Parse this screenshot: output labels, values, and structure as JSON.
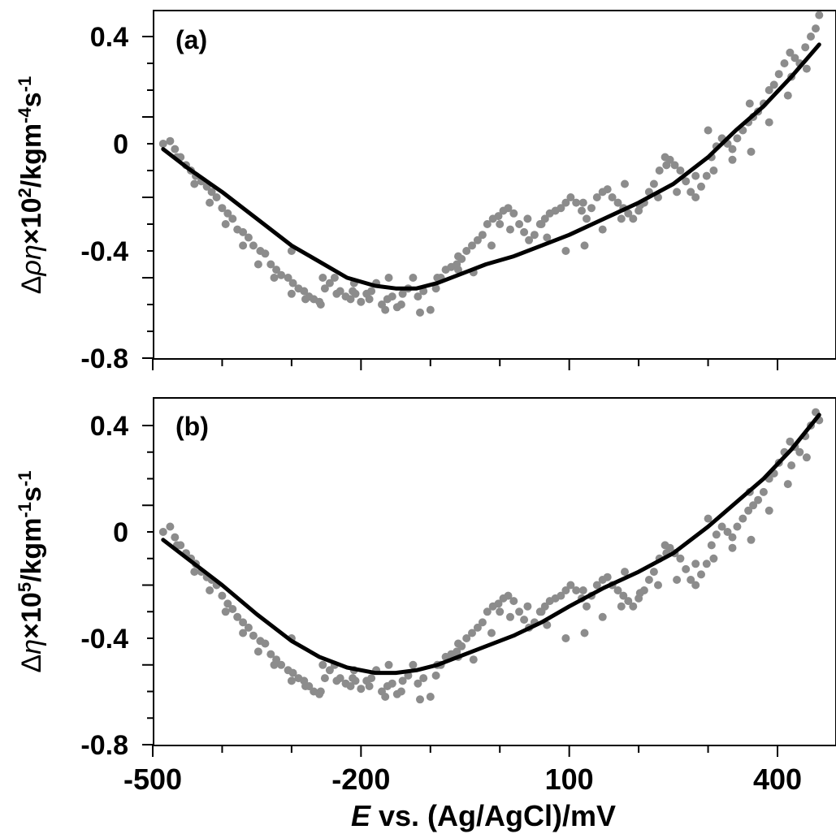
{
  "figure": {
    "xlabel_italic": "E",
    "xlabel_rest": " vs. (Ag/AgCl)/mV",
    "x_ticks": [
      "-500",
      "-200",
      "100",
      "400"
    ]
  },
  "chart_data": [
    {
      "type": "scatter",
      "panel_label": "(a)",
      "ylabel": "Δρη×10²/kgm⁻⁴s⁻¹",
      "ylabel_parts": [
        "Δ",
        "ρη",
        "×10",
        "2",
        "/kgm",
        "-4",
        "s",
        "-1"
      ],
      "xlim": [
        -500,
        470
      ],
      "ylim": [
        -0.8,
        0.4
      ],
      "x_ticks": [
        -500,
        -400,
        -300,
        -200,
        -100,
        0,
        100,
        200,
        300,
        400
      ],
      "x_tick_labels": [
        "-500",
        "-200",
        "100",
        "400"
      ],
      "y_ticks": [
        -0.8,
        -0.4,
        0,
        0.4
      ],
      "y_tick_labels": [
        "-0.8",
        "-0.4",
        "0",
        "0.4"
      ],
      "grid": false,
      "series": [
        {
          "kind": "points",
          "color": "#8c8c8c",
          "x": [
            -485,
            -475,
            -468,
            -460,
            -452,
            -445,
            -438,
            -430,
            -422,
            -415,
            -408,
            -400,
            -392,
            -385,
            -378,
            -370,
            -362,
            -355,
            -345,
            -338,
            -330,
            -322,
            -315,
            -305,
            -298,
            -290,
            -282,
            -275,
            -268,
            -260,
            -252,
            -245,
            -238,
            -230,
            -222,
            -215,
            -208,
            -200,
            -192,
            -185,
            -178,
            -170,
            -162,
            -155,
            -148,
            -140,
            -132,
            -125,
            -115,
            -100,
            -92,
            -85,
            -78,
            -70,
            -62,
            -55,
            -48,
            -40,
            -32,
            -25,
            -18,
            -10,
            -2,
            5,
            12,
            20,
            28,
            35,
            42,
            50,
            58,
            65,
            72,
            80,
            88,
            95,
            102,
            110,
            118,
            125,
            132,
            140,
            148,
            155,
            162,
            170,
            178,
            185,
            192,
            200,
            208,
            215,
            222,
            230,
            238,
            245,
            252,
            260,
            268,
            275,
            282,
            290,
            298,
            305,
            312,
            320,
            328,
            335,
            342,
            350,
            358,
            365,
            372,
            380,
            388,
            395,
            402,
            410,
            418,
            425,
            432,
            440,
            448,
            455,
            -465,
            -440,
            -418,
            -395,
            -370,
            -348,
            -325,
            -300,
            -280,
            -258,
            -235,
            -212,
            -188,
            -165,
            -142,
            -118,
            -90,
            -60,
            -38,
            -12,
            15,
            40,
            68,
            95,
            122,
            148,
            175,
            202,
            228,
            255,
            282,
            308,
            335,
            362,
            388,
            415,
            442,
            460,
            -300,
            -255,
            -210,
            -160,
            -110,
            -60,
            0,
            60,
            120,
            180,
            240,
            300,
            360,
            420
          ],
          "y": [
            0.0,
            0.01,
            -0.02,
            -0.05,
            -0.08,
            -0.1,
            -0.12,
            -0.14,
            -0.16,
            -0.18,
            -0.2,
            -0.24,
            -0.26,
            -0.28,
            -0.32,
            -0.33,
            -0.35,
            -0.38,
            -0.4,
            -0.41,
            -0.45,
            -0.47,
            -0.49,
            -0.5,
            -0.52,
            -0.54,
            -0.55,
            -0.57,
            -0.58,
            -0.59,
            -0.54,
            -0.52,
            -0.5,
            -0.55,
            -0.57,
            -0.58,
            -0.56,
            -0.59,
            -0.56,
            -0.55,
            -0.52,
            -0.6,
            -0.58,
            -0.57,
            -0.61,
            -0.56,
            -0.54,
            -0.5,
            -0.63,
            -0.62,
            -0.54,
            -0.5,
            -0.47,
            -0.46,
            -0.45,
            -0.43,
            -0.4,
            -0.38,
            -0.36,
            -0.34,
            -0.3,
            -0.28,
            -0.27,
            -0.25,
            -0.24,
            -0.26,
            -0.3,
            -0.33,
            -0.36,
            -0.34,
            -0.3,
            -0.28,
            -0.26,
            -0.25,
            -0.24,
            -0.22,
            -0.2,
            -0.22,
            -0.25,
            -0.28,
            -0.24,
            -0.2,
            -0.18,
            -0.17,
            -0.2,
            -0.22,
            -0.24,
            -0.26,
            -0.28,
            -0.25,
            -0.22,
            -0.18,
            -0.15,
            -0.1,
            -0.05,
            -0.06,
            -0.08,
            -0.1,
            -0.14,
            -0.18,
            -0.2,
            -0.16,
            -0.12,
            -0.05,
            -0.01,
            0.02,
            0.0,
            -0.02,
            0.02,
            0.05,
            0.08,
            0.1,
            0.12,
            0.15,
            0.2,
            0.22,
            0.26,
            0.3,
            0.34,
            0.32,
            0.3,
            0.36,
            0.4,
            0.43,
            -0.05,
            -0.15,
            -0.22,
            -0.3,
            -0.38,
            -0.45,
            -0.5,
            -0.56,
            -0.58,
            -0.6,
            -0.56,
            -0.55,
            -0.58,
            -0.62,
            -0.6,
            -0.57,
            -0.5,
            -0.47,
            -0.48,
            -0.38,
            -0.32,
            -0.28,
            -0.35,
            -0.4,
            -0.38,
            -0.32,
            -0.28,
            -0.23,
            -0.2,
            -0.18,
            -0.12,
            -0.1,
            -0.06,
            -0.03,
            0.08,
            0.18,
            0.28,
            0.48,
            -0.4,
            -0.5,
            -0.52,
            -0.5,
            -0.55,
            -0.42,
            -0.3,
            -0.3,
            -0.22,
            -0.15,
            -0.08,
            0.05,
            0.15,
            0.25
          ]
        },
        {
          "kind": "line",
          "color": "#000000",
          "x": [
            -485,
            -450,
            -400,
            -350,
            -300,
            -260,
            -220,
            -180,
            -150,
            -120,
            -90,
            -60,
            -20,
            20,
            60,
            100,
            150,
            200,
            250,
            300,
            340,
            380,
            420,
            460
          ],
          "y": [
            -0.02,
            -0.09,
            -0.18,
            -0.28,
            -0.38,
            -0.44,
            -0.5,
            -0.53,
            -0.54,
            -0.54,
            -0.52,
            -0.49,
            -0.45,
            -0.42,
            -0.38,
            -0.34,
            -0.28,
            -0.22,
            -0.15,
            -0.05,
            0.05,
            0.14,
            0.25,
            0.37
          ]
        }
      ]
    },
    {
      "type": "scatter",
      "panel_label": "(b)",
      "ylabel": "Δη×10⁵/kgm⁻¹s⁻¹",
      "ylabel_parts": [
        "Δ",
        "η",
        "×10",
        "5",
        "/kgm",
        "-1",
        "s",
        "-1"
      ],
      "xlabel": "E vs. (Ag/AgCl)/mV",
      "xlim": [
        -500,
        470
      ],
      "ylim": [
        -0.8,
        0.4
      ],
      "x_ticks": [
        -500,
        -400,
        -300,
        -200,
        -100,
        0,
        100,
        200,
        300,
        400
      ],
      "x_tick_labels": [
        "-500",
        "-200",
        "100",
        "400"
      ],
      "y_ticks": [
        -0.8,
        -0.4,
        0,
        0.4
      ],
      "y_tick_labels": [
        "-0.8",
        "-0.4",
        "0",
        "0.4"
      ],
      "grid": false,
      "series": [
        {
          "kind": "points",
          "color": "#8c8c8c",
          "x": [
            -485,
            -475,
            -468,
            -460,
            -452,
            -445,
            -438,
            -430,
            -422,
            -415,
            -408,
            -400,
            -392,
            -385,
            -378,
            -370,
            -362,
            -355,
            -345,
            -338,
            -330,
            -322,
            -315,
            -305,
            -298,
            -290,
            -282,
            -275,
            -268,
            -260,
            -252,
            -245,
            -238,
            -230,
            -222,
            -215,
            -208,
            -200,
            -192,
            -185,
            -178,
            -170,
            -162,
            -155,
            -148,
            -140,
            -132,
            -125,
            -115,
            -100,
            -92,
            -85,
            -78,
            -70,
            -62,
            -55,
            -48,
            -40,
            -32,
            -25,
            -18,
            -10,
            -2,
            5,
            12,
            20,
            28,
            35,
            42,
            50,
            58,
            65,
            72,
            80,
            88,
            95,
            102,
            110,
            118,
            125,
            132,
            140,
            148,
            155,
            162,
            170,
            178,
            185,
            192,
            200,
            208,
            215,
            222,
            230,
            238,
            245,
            252,
            260,
            268,
            275,
            282,
            290,
            298,
            305,
            312,
            320,
            328,
            335,
            342,
            350,
            358,
            365,
            372,
            380,
            388,
            395,
            402,
            410,
            418,
            425,
            432,
            440,
            448,
            455,
            -465,
            -440,
            -418,
            -395,
            -370,
            -348,
            -325,
            -300,
            -280,
            -258,
            -235,
            -212,
            -188,
            -165,
            -142,
            -118,
            -90,
            -60,
            -38,
            -12,
            15,
            40,
            68,
            95,
            122,
            148,
            175,
            202,
            228,
            255,
            282,
            308,
            335,
            362,
            388,
            415,
            442,
            460,
            -300,
            -255,
            -210,
            -160,
            -110,
            -60,
            0,
            60,
            120,
            180,
            240,
            300,
            360,
            420
          ],
          "y": [
            0.0,
            0.02,
            -0.02,
            -0.05,
            -0.08,
            -0.1,
            -0.12,
            -0.15,
            -0.17,
            -0.18,
            -0.2,
            -0.24,
            -0.27,
            -0.29,
            -0.32,
            -0.34,
            -0.36,
            -0.39,
            -0.41,
            -0.42,
            -0.46,
            -0.48,
            -0.5,
            -0.52,
            -0.53,
            -0.55,
            -0.56,
            -0.58,
            -0.6,
            -0.61,
            -0.55,
            -0.52,
            -0.5,
            -0.55,
            -0.57,
            -0.58,
            -0.56,
            -0.59,
            -0.56,
            -0.55,
            -0.52,
            -0.6,
            -0.58,
            -0.57,
            -0.61,
            -0.56,
            -0.54,
            -0.5,
            -0.63,
            -0.62,
            -0.54,
            -0.5,
            -0.47,
            -0.46,
            -0.45,
            -0.43,
            -0.4,
            -0.38,
            -0.36,
            -0.34,
            -0.3,
            -0.28,
            -0.27,
            -0.25,
            -0.24,
            -0.26,
            -0.3,
            -0.33,
            -0.36,
            -0.34,
            -0.3,
            -0.28,
            -0.26,
            -0.25,
            -0.24,
            -0.22,
            -0.2,
            -0.22,
            -0.25,
            -0.28,
            -0.24,
            -0.2,
            -0.18,
            -0.17,
            -0.2,
            -0.22,
            -0.24,
            -0.26,
            -0.28,
            -0.25,
            -0.22,
            -0.18,
            -0.15,
            -0.1,
            -0.05,
            -0.06,
            -0.08,
            -0.1,
            -0.14,
            -0.18,
            -0.2,
            -0.16,
            -0.12,
            -0.05,
            -0.01,
            0.02,
            0.0,
            -0.02,
            0.02,
            0.05,
            0.08,
            0.1,
            0.12,
            0.15,
            0.2,
            0.22,
            0.26,
            0.3,
            0.34,
            0.32,
            0.3,
            0.36,
            0.4,
            0.45,
            -0.05,
            -0.15,
            -0.22,
            -0.3,
            -0.38,
            -0.45,
            -0.5,
            -0.56,
            -0.58,
            -0.6,
            -0.56,
            -0.55,
            -0.58,
            -0.62,
            -0.6,
            -0.57,
            -0.5,
            -0.47,
            -0.48,
            -0.38,
            -0.32,
            -0.28,
            -0.35,
            -0.4,
            -0.38,
            -0.32,
            -0.28,
            -0.23,
            -0.2,
            -0.18,
            -0.12,
            -0.1,
            -0.06,
            -0.03,
            0.08,
            0.18,
            0.28,
            0.42,
            -0.4,
            -0.5,
            -0.52,
            -0.5,
            -0.55,
            -0.42,
            -0.3,
            -0.3,
            -0.22,
            -0.15,
            -0.08,
            0.05,
            0.15,
            0.25
          ]
        },
        {
          "kind": "line",
          "color": "#000000",
          "x": [
            -485,
            -450,
            -400,
            -350,
            -300,
            -260,
            -220,
            -180,
            -150,
            -120,
            -90,
            -60,
            -20,
            20,
            60,
            100,
            150,
            200,
            250,
            300,
            340,
            380,
            420,
            460
          ],
          "y": [
            -0.03,
            -0.1,
            -0.2,
            -0.31,
            -0.41,
            -0.47,
            -0.51,
            -0.53,
            -0.53,
            -0.52,
            -0.5,
            -0.47,
            -0.43,
            -0.39,
            -0.34,
            -0.28,
            -0.21,
            -0.15,
            -0.08,
            0.02,
            0.11,
            0.2,
            0.31,
            0.44
          ]
        }
      ]
    }
  ]
}
